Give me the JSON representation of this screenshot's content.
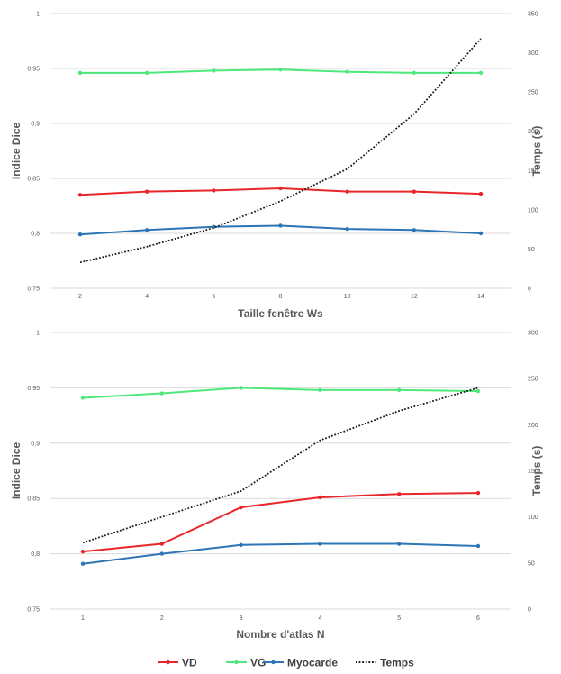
{
  "chart_data": [
    {
      "type": "line",
      "x": [
        2,
        4,
        6,
        8,
        10,
        12,
        14
      ],
      "xlabel": "Taille fenêtre Ws",
      "ylabel": "Indice Dice",
      "y2label": "Temps (s)",
      "ylim": [
        0.75,
        1
      ],
      "yticks": [
        "0,75",
        "0,8",
        "0,85",
        "0,9",
        "0,95",
        "1"
      ],
      "y2lim": [
        0,
        350
      ],
      "y2ticks": [
        "0",
        "50",
        "100",
        "150",
        "200",
        "250",
        "300",
        "350"
      ],
      "grid": true,
      "series": [
        {
          "name": "VD",
          "axis": "left",
          "color": "#e8262a",
          "values": [
            0.835,
            0.838,
            0.839,
            0.841,
            0.838,
            0.838,
            0.836
          ]
        },
        {
          "name": "VG",
          "axis": "left",
          "color": "#4ee87a",
          "values": [
            0.946,
            0.946,
            0.948,
            0.949,
            0.947,
            0.946,
            0.946
          ]
        },
        {
          "name": "Myocarde",
          "axis": "left",
          "color": "#2e75b6",
          "values": [
            0.799,
            0.803,
            0.806,
            0.807,
            0.804,
            0.803,
            0.8
          ]
        },
        {
          "name": "Temps",
          "axis": "right",
          "color": "#1a1a1a",
          "dashed": true,
          "values": [
            33,
            53,
            77,
            111,
            152,
            222,
            318
          ]
        }
      ]
    },
    {
      "type": "line",
      "x": [
        1,
        2,
        3,
        4,
        5,
        6
      ],
      "xlabel": "Nombre d'atlas N",
      "ylabel": "Indice Dice",
      "y2label": "Temps (s)",
      "ylim": [
        0.75,
        1
      ],
      "yticks": [
        "0,75",
        "0,8",
        "0,85",
        "0,9",
        "0,95",
        "1"
      ],
      "y2lim": [
        0,
        300
      ],
      "y2ticks": [
        "0",
        "50",
        "100",
        "150",
        "200",
        "250",
        "300"
      ],
      "grid": true,
      "series": [
        {
          "name": "VD",
          "axis": "left",
          "color": "#e8262a",
          "values": [
            0.802,
            0.809,
            0.842,
            0.851,
            0.854,
            0.855
          ]
        },
        {
          "name": "VG",
          "axis": "left",
          "color": "#4ee87a",
          "values": [
            0.941,
            0.945,
            0.95,
            0.948,
            0.948,
            0.947
          ]
        },
        {
          "name": "Myocarde",
          "axis": "left",
          "color": "#2e75b6",
          "values": [
            0.791,
            0.8,
            0.808,
            0.809,
            0.809,
            0.807
          ]
        },
        {
          "name": "Temps",
          "axis": "right",
          "color": "#1a1a1a",
          "dashed": true,
          "values": [
            72,
            100,
            128,
            183,
            215,
            240
          ]
        }
      ]
    }
  ],
  "legend": {
    "placement": "bottom",
    "entries": [
      {
        "name": "VD",
        "color": "#e8262a",
        "dashed": false
      },
      {
        "name": "VG",
        "color": "#4ee87a",
        "dashed": false
      },
      {
        "name": "Myocarde",
        "color": "#2e75b6",
        "dashed": false
      },
      {
        "name": "Temps",
        "color": "#1a1a1a",
        "dashed": true
      }
    ]
  }
}
